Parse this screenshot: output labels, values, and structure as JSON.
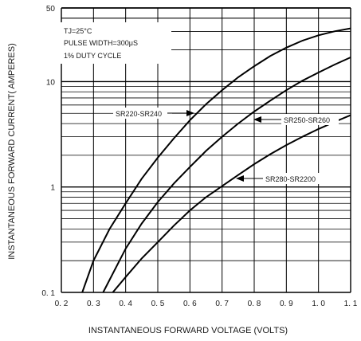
{
  "chart_data": {
    "type": "line",
    "xlabel": "INSTANTANEOUS FORWARD VOLTAGE (VOLTS)",
    "ylabel": "INSTANTANEOUS FORWARD CURRENT( AMPERES)",
    "xlim": [
      0.2,
      1.1
    ],
    "ylim": [
      0.1,
      50
    ],
    "yscale": "log",
    "grid": true,
    "x_ticks": [
      {
        "value": 0.2,
        "label": "0. 2"
      },
      {
        "value": 0.3,
        "label": "0. 3"
      },
      {
        "value": 0.4,
        "label": "0. 4"
      },
      {
        "value": 0.5,
        "label": "0. 5"
      },
      {
        "value": 0.6,
        "label": "0. 6"
      },
      {
        "value": 0.7,
        "label": "0. 7"
      },
      {
        "value": 0.8,
        "label": "0. 8"
      },
      {
        "value": 0.9,
        "label": "0. 9"
      },
      {
        "value": 1.0,
        "label": "1. 0"
      },
      {
        "value": 1.1,
        "label": "1. 1"
      }
    ],
    "y_ticks": [
      {
        "value": 0.1,
        "label": "0. 1"
      },
      {
        "value": 1,
        "label": "1"
      },
      {
        "value": 10,
        "label": "10"
      },
      {
        "value": 50,
        "label": "50"
      }
    ],
    "annotations": [
      "TJ=25°C",
      "PULSE WIDTH=300μS",
      "1% DUTY CYCLE"
    ],
    "series": [
      {
        "name": "SR220-SR240",
        "x": [
          0.265,
          0.3,
          0.35,
          0.4,
          0.45,
          0.5,
          0.55,
          0.6,
          0.65,
          0.7,
          0.75,
          0.8,
          0.85,
          0.9,
          0.95,
          1.0,
          1.05,
          1.1
        ],
        "y": [
          0.1,
          0.2,
          0.4,
          0.7,
          1.2,
          1.9,
          2.9,
          4.3,
          6.1,
          8.3,
          11,
          14,
          17.5,
          21,
          24.5,
          27.5,
          30,
          32
        ]
      },
      {
        "name": "SR250-SR260",
        "x": [
          0.33,
          0.4,
          0.45,
          0.5,
          0.55,
          0.6,
          0.65,
          0.7,
          0.75,
          0.8,
          0.85,
          0.9,
          0.95,
          1.0,
          1.05,
          1.1
        ],
        "y": [
          0.1,
          0.26,
          0.45,
          0.72,
          1.08,
          1.55,
          2.2,
          3.0,
          4.0,
          5.2,
          6.6,
          8.3,
          10.2,
          12.2,
          14.5,
          17
        ]
      },
      {
        "name": "SR280-SR2200",
        "x": [
          0.36,
          0.4,
          0.45,
          0.5,
          0.55,
          0.6,
          0.65,
          0.7,
          0.75,
          0.8,
          0.85,
          0.9,
          0.95,
          1.0,
          1.05,
          1.1
        ],
        "y": [
          0.1,
          0.14,
          0.21,
          0.3,
          0.43,
          0.6,
          0.8,
          1.02,
          1.3,
          1.65,
          2.05,
          2.5,
          3.0,
          3.55,
          4.15,
          4.8
        ]
      }
    ]
  }
}
